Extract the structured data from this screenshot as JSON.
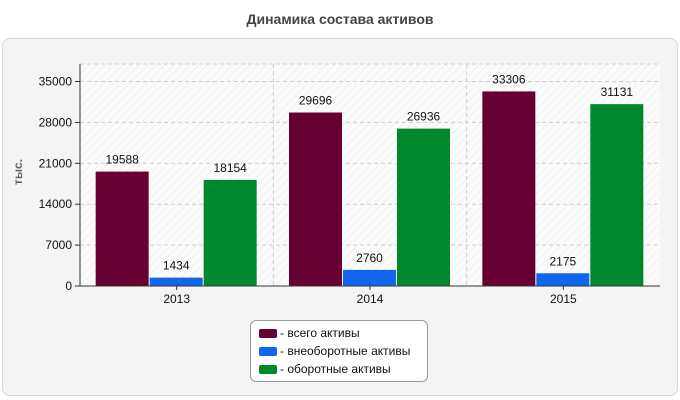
{
  "chart_data": {
    "type": "bar",
    "title": "Динамика состава активов",
    "xlabel": "",
    "ylabel": "тыс.",
    "categories": [
      "2013",
      "2014",
      "2015"
    ],
    "ylim": [
      0,
      38000
    ],
    "yticks": [
      0,
      7000,
      14000,
      21000,
      28000,
      35000
    ],
    "grid": true,
    "legend_position": "bottom-center",
    "series": [
      {
        "name": "всего активы",
        "legend_label": "- всего активы",
        "color": "#660033",
        "values": [
          19588,
          29696,
          33306
        ]
      },
      {
        "name": "внеоборотные активы",
        "legend_label": "- внеоборотные активы",
        "color": "#1166ee",
        "values": [
          1434,
          2760,
          2175
        ]
      },
      {
        "name": "оборотные активы",
        "legend_label": "- оборотные активы",
        "color": "#00882f",
        "values": [
          18154,
          26936,
          31131
        ]
      }
    ]
  }
}
